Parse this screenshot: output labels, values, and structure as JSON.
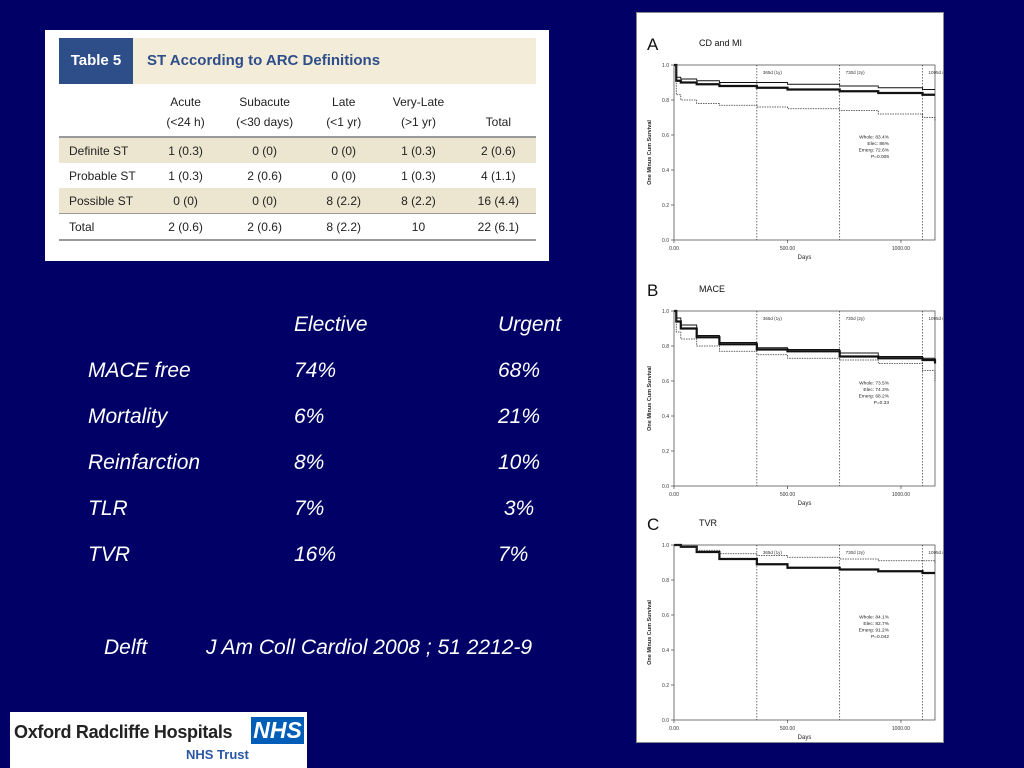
{
  "table5": {
    "tag": "Table 5",
    "title": "ST According to ARC Definitions",
    "columns": [
      {
        "line1": "Acute",
        "line2": "(<24 h)"
      },
      {
        "line1": "Subacute",
        "line2": "(<30 days)"
      },
      {
        "line1": "Late",
        "line2": "(<1 yr)"
      },
      {
        "line1": "Very-Late",
        "line2": "(>1 yr)"
      },
      {
        "line1": "",
        "line2": "Total"
      }
    ],
    "rows": [
      {
        "label": "Definite ST",
        "cells": [
          "1 (0.3)",
          "0 (0)",
          "0 (0)",
          "1 (0.3)",
          "2 (0.6)"
        ]
      },
      {
        "label": "Probable ST",
        "cells": [
          "1 (0.3)",
          "2 (0.6)",
          "0 (0)",
          "1 (0.3)",
          "4 (1.1)"
        ]
      },
      {
        "label": "Possible ST",
        "cells": [
          "0 (0)",
          "0 (0)",
          "8 (2.2)",
          "8 (2.2)",
          "16 (4.4)"
        ]
      },
      {
        "label": "Total",
        "cells": [
          "2 (0.6)",
          "2 (0.6)",
          "8 (2.2)",
          "10",
          "22 (6.1)"
        ]
      }
    ]
  },
  "summary": {
    "headers": [
      "Elective",
      "Urgent"
    ],
    "rows": [
      {
        "label": "MACE free",
        "elective": "74%",
        "urgent": "68%"
      },
      {
        "label": "Mortality",
        "elective": "6%",
        "urgent": "21%"
      },
      {
        "label": "Reinfarction",
        "elective": "8%",
        "urgent": "10%"
      },
      {
        "label": "TLR",
        "elective": "7%",
        "urgent": " 3%"
      },
      {
        "label": "TVR",
        "elective": "16%",
        "urgent": "7%"
      }
    ],
    "citation_place": "Delft",
    "citation_ref": "J Am Coll Cardiol 2008 ; 51 2212-9"
  },
  "chart_data": [
    {
      "type": "line",
      "panel_letter": "A",
      "title": "CD and MI",
      "xlabel": "Days",
      "ylabel": "One Minus Cum Survival",
      "xlim": [
        0,
        1150
      ],
      "ylim": [
        0,
        1.0
      ],
      "xticks": [
        0,
        500,
        1000
      ],
      "xtick_labels": [
        "0.00",
        "500.00",
        "1000.00"
      ],
      "yticks": [
        0.0,
        0.2,
        0.4,
        0.6,
        0.8,
        1.0
      ],
      "ytick_labels": [
        "0.0",
        "0.2",
        "0.4",
        "0.6",
        "0.8",
        "1.0"
      ],
      "markers": [
        {
          "x": 365,
          "label": "365d (1y)"
        },
        {
          "x": 730,
          "label": "730d (2y)"
        },
        {
          "x": 1095,
          "label": "1095d (3y)"
        }
      ],
      "stats": [
        "Whole: 83.4%",
        "Elec: 86%",
        "Emerg: 72.6%",
        "P=0.005"
      ],
      "series": [
        {
          "style": "thick",
          "x": [
            0,
            10,
            30,
            100,
            200,
            365,
            500,
            730,
            900,
            1095,
            1150
          ],
          "y": [
            1.0,
            0.91,
            0.9,
            0.89,
            0.88,
            0.87,
            0.86,
            0.85,
            0.84,
            0.83,
            0.83
          ]
        },
        {
          "style": "thin",
          "x": [
            0,
            10,
            30,
            100,
            200,
            365,
            500,
            730,
            900,
            1095,
            1150
          ],
          "y": [
            1.0,
            0.93,
            0.92,
            0.91,
            0.9,
            0.9,
            0.89,
            0.88,
            0.87,
            0.86,
            0.86
          ]
        },
        {
          "style": "dotted",
          "x": [
            0,
            10,
            30,
            100,
            200,
            365,
            500,
            730,
            900,
            1095,
            1150
          ],
          "y": [
            1.0,
            0.83,
            0.8,
            0.78,
            0.77,
            0.76,
            0.75,
            0.74,
            0.72,
            0.7,
            0.68
          ]
        }
      ]
    },
    {
      "type": "line",
      "panel_letter": "B",
      "title": "MACE",
      "xlabel": "Days",
      "ylabel": "One Minus Cum Survival",
      "xlim": [
        0,
        1150
      ],
      "ylim": [
        0,
        1.0
      ],
      "xticks": [
        0,
        500,
        1000
      ],
      "xtick_labels": [
        "0.00",
        "500.00",
        "1000.00"
      ],
      "yticks": [
        0.0,
        0.2,
        0.4,
        0.6,
        0.8,
        1.0
      ],
      "ytick_labels": [
        "0.0",
        "0.2",
        "0.4",
        "0.6",
        "0.8",
        "1.0"
      ],
      "markers": [
        {
          "x": 365,
          "label": "365d (1y)"
        },
        {
          "x": 730,
          "label": "730d (2y)"
        },
        {
          "x": 1095,
          "label": "1095d (3y)"
        }
      ],
      "stats": [
        "Whole: 73.5%",
        "Elec: 74.3%",
        "Emerg: 68.2%",
        "P=0.33"
      ],
      "series": [
        {
          "style": "thick",
          "x": [
            0,
            10,
            30,
            100,
            200,
            365,
            500,
            730,
            900,
            1095,
            1150
          ],
          "y": [
            1.0,
            0.94,
            0.9,
            0.85,
            0.81,
            0.78,
            0.77,
            0.74,
            0.73,
            0.72,
            0.7
          ]
        },
        {
          "style": "thin",
          "x": [
            0,
            10,
            30,
            100,
            200,
            365,
            500,
            730,
            900,
            1095,
            1150
          ],
          "y": [
            1.0,
            0.96,
            0.92,
            0.86,
            0.82,
            0.79,
            0.78,
            0.76,
            0.74,
            0.73,
            0.71
          ]
        },
        {
          "style": "dotted",
          "x": [
            0,
            10,
            30,
            100,
            200,
            365,
            500,
            730,
            900,
            1095,
            1150
          ],
          "y": [
            1.0,
            0.88,
            0.84,
            0.8,
            0.77,
            0.75,
            0.73,
            0.72,
            0.7,
            0.66,
            0.6
          ]
        }
      ]
    },
    {
      "type": "line",
      "panel_letter": "C",
      "title": "TVR",
      "xlabel": "Days",
      "ylabel": "One Minus Cum Survival",
      "xlim": [
        0,
        1150
      ],
      "ylim": [
        0,
        1.0
      ],
      "xticks": [
        0,
        500,
        1000
      ],
      "xtick_labels": [
        "0.00",
        "500.00",
        "1000.00"
      ],
      "yticks": [
        0.0,
        0.2,
        0.4,
        0.6,
        0.8,
        1.0
      ],
      "ytick_labels": [
        "0.0",
        "0.2",
        "0.4",
        "0.6",
        "0.8",
        "1.0"
      ],
      "markers": [
        {
          "x": 365,
          "label": "365d (1y)"
        },
        {
          "x": 730,
          "label": "730d (2y)"
        },
        {
          "x": 1095,
          "label": "1095d (3y)"
        }
      ],
      "stats": [
        "Whole: 84.1%",
        "Elec: 82.7%",
        "Emerg: 91.2%",
        "P=0.042"
      ],
      "series": [
        {
          "style": "thick",
          "x": [
            0,
            30,
            100,
            200,
            365,
            500,
            730,
            900,
            1095,
            1150
          ],
          "y": [
            1.0,
            0.99,
            0.96,
            0.92,
            0.89,
            0.87,
            0.86,
            0.85,
            0.84,
            0.84
          ]
        },
        {
          "style": "dotted",
          "x": [
            0,
            30,
            100,
            200,
            365,
            500,
            730,
            900,
            1095,
            1150
          ],
          "y": [
            1.0,
            0.99,
            0.97,
            0.95,
            0.94,
            0.93,
            0.92,
            0.91,
            0.91,
            0.9
          ]
        }
      ]
    }
  ],
  "logo": {
    "org": "Oxford Radcliffe Hospitals",
    "badge": "NHS",
    "trust": "NHS Trust",
    "badge_color": "#005eb8"
  }
}
